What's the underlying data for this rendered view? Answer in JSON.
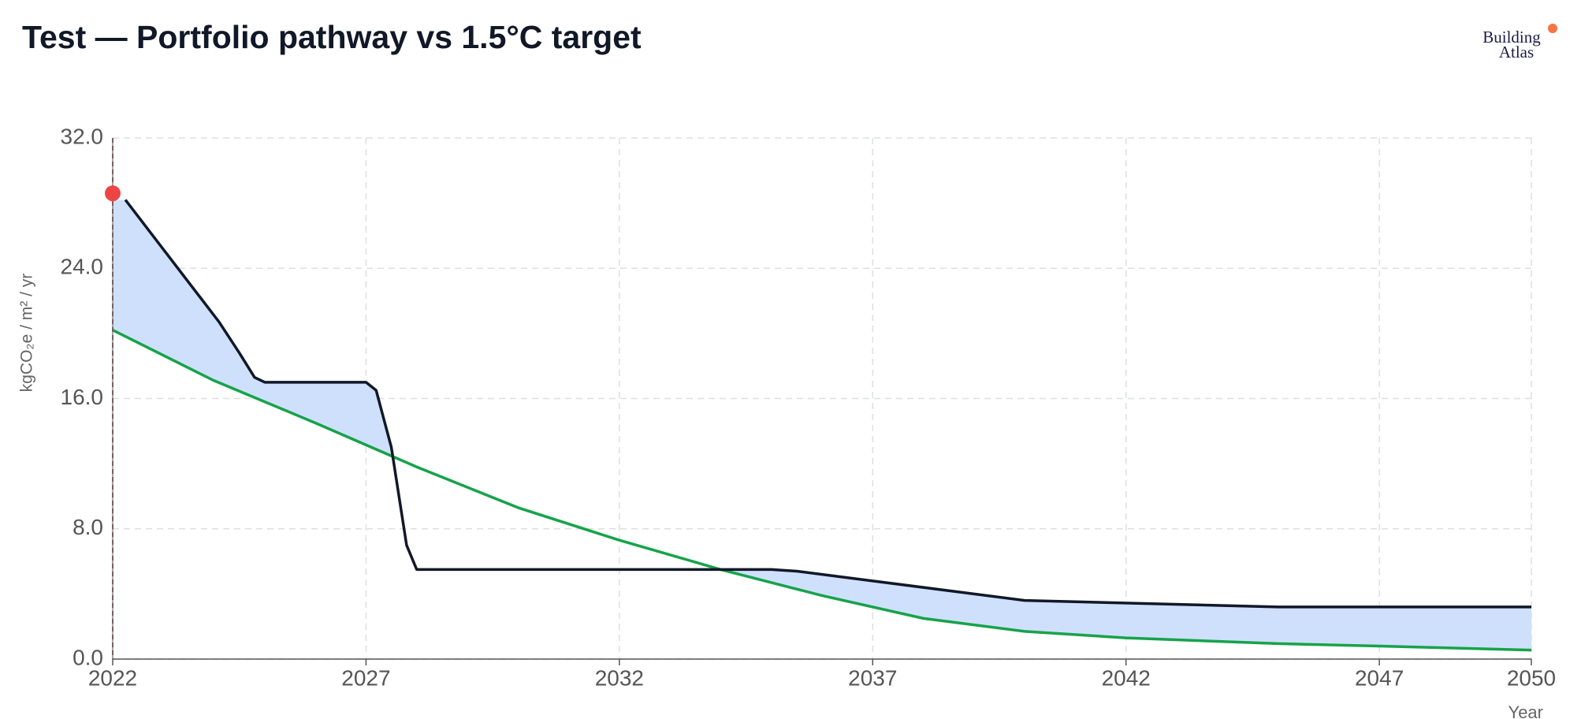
{
  "logo": {
    "line1": "Building",
    "line2": "Atlas"
  },
  "chart_data": {
    "type": "line",
    "title": "Test — Portfolio pathway vs 1.5°C target",
    "x_label": "Year",
    "y_label": "kgCO₂e / m² / yr",
    "xlim": [
      2022,
      2050
    ],
    "xticks": [
      2022,
      2027,
      2032,
      2037,
      2042,
      2047,
      2050
    ],
    "ylim": [
      0,
      32
    ],
    "yticks": [
      {
        "value": 0,
        "label": "0.0"
      },
      {
        "value": 8,
        "label": "8.0"
      },
      {
        "value": 16,
        "label": "16.0"
      },
      {
        "value": 24,
        "label": "24.0"
      },
      {
        "value": 32,
        "label": "32.0"
      }
    ],
    "grid": true,
    "fill_color": "#cfe0fd",
    "series": [
      {
        "color": "#111827",
        "x": [
          2022.25,
          2024.1,
          2024.5,
          2024.8,
          2025,
          2027,
          2027.2,
          2027.5,
          2027.8,
          2028,
          2035,
          2035.5,
          2037,
          2040,
          2045,
          2050
        ],
        "values": [
          28.2,
          20.7,
          18.8,
          17.3,
          17.0,
          17.0,
          16.5,
          13.0,
          7.0,
          5.5,
          5.5,
          5.4,
          4.8,
          3.6,
          3.2,
          3.2
        ]
      },
      {
        "color": "#16a34a",
        "x": [
          2022,
          2024,
          2026,
          2028,
          2030,
          2032,
          2034,
          2036,
          2038,
          2040,
          2042,
          2045,
          2047,
          2050
        ],
        "values": [
          20.2,
          17.1,
          14.5,
          11.8,
          9.3,
          7.3,
          5.5,
          3.9,
          2.5,
          1.7,
          1.3,
          0.95,
          0.8,
          0.55
        ]
      }
    ],
    "marker": {
      "x": 2022,
      "y": 28.6,
      "color": "#ef4444"
    }
  }
}
